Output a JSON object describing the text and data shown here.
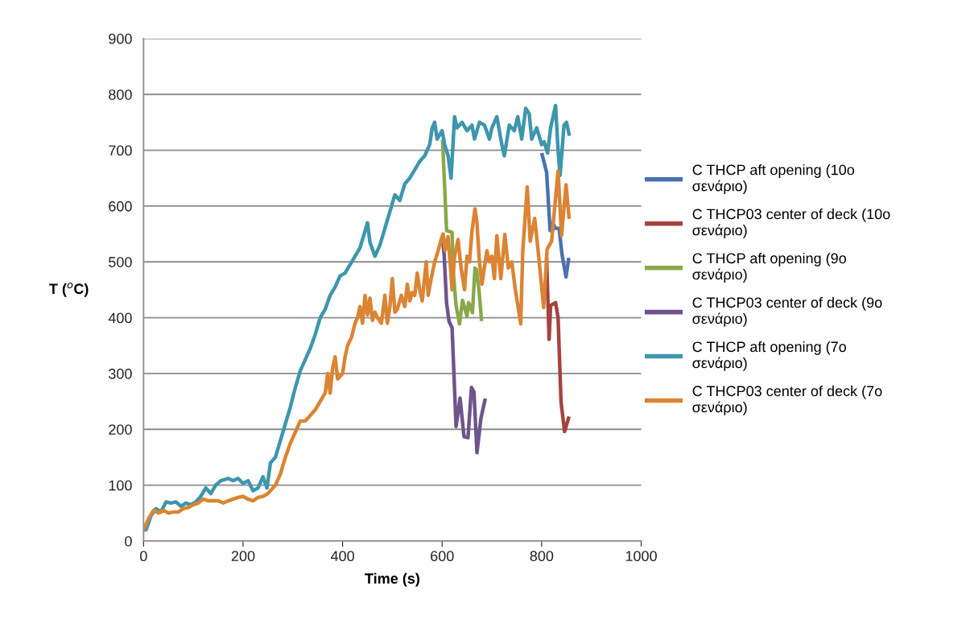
{
  "chart_data": {
    "type": "line",
    "xlabel": "Time (s)",
    "ylabel": "T ($^{o}$C)",
    "xlim": [
      0,
      1000
    ],
    "xticks": [
      0,
      200,
      400,
      600,
      800,
      1000
    ],
    "ylim": [
      0,
      900
    ],
    "yticks": [
      0,
      100,
      200,
      300,
      400,
      500,
      600,
      700,
      800,
      900
    ],
    "grid": "y",
    "legend": "right",
    "marker": "none",
    "line_style": "solid",
    "series": [
      {
        "name": "C THCP aft opening (10o σενάριο)",
        "color": "#4a72b0",
        "x": [
          801,
          810,
          817,
          822,
          828,
          835,
          841,
          849,
          854
        ],
        "values": [
          692,
          660,
          556,
          570,
          560,
          560,
          513,
          473,
          504
        ]
      },
      {
        "name": "C THCP03 center of deck (10o σενάριο)",
        "color": "#a5423f",
        "x": [
          810,
          815,
          818,
          828,
          833,
          839,
          846,
          854
        ],
        "values": [
          505,
          361,
          422,
          427,
          400,
          249,
          196,
          220
        ]
      },
      {
        "name": "C THCP aft opening (9o σενάριο)",
        "color": "#8aa84b",
        "x": [
          601,
          609,
          620,
          622,
          628,
          635,
          641,
          650,
          653,
          661,
          666,
          669,
          674,
          679
        ],
        "values": [
          715,
          556,
          553,
          486,
          422,
          389,
          431,
          403,
          427,
          409,
          489,
          486,
          450,
          397
        ]
      },
      {
        "name": "C THCP03 center of deck (9o σενάριο)",
        "color": "#6e548d",
        "x": [
          601,
          604,
          609,
          614,
          620,
          628,
          636,
          644,
          652,
          659,
          664,
          670,
          678,
          686
        ],
        "values": [
          540,
          513,
          426,
          393,
          382,
          205,
          256,
          187,
          185,
          275,
          267,
          158,
          220,
          252
        ]
      },
      {
        "name": "C THCP aft opening (7o σενάριο)",
        "color": "#3d96ae",
        "x": [
          0,
          5,
          15,
          25,
          35,
          45,
          55,
          65,
          75,
          85,
          95,
          105,
          115,
          125,
          135,
          145,
          155,
          170,
          180,
          190,
          200,
          210,
          220,
          230,
          240,
          248,
          255,
          265,
          275,
          285,
          295,
          305,
          315,
          325,
          335,
          345,
          355,
          365,
          375,
          385,
          395,
          405,
          415,
          425,
          435,
          445,
          450,
          455,
          465,
          475,
          485,
          495,
          505,
          515,
          525,
          535,
          545,
          555,
          565,
          575,
          580,
          585,
          590,
          600,
          605,
          612,
          618,
          625,
          630,
          640,
          650,
          660,
          665,
          675,
          685,
          695,
          700,
          710,
          720,
          725,
          735,
          745,
          752,
          760,
          768,
          775,
          780,
          790,
          800,
          805,
          812,
          818,
          828,
          833,
          837,
          845,
          850,
          855
        ],
        "values": [
          20,
          20,
          45,
          58,
          52,
          70,
          68,
          70,
          62,
          68,
          65,
          70,
          80,
          95,
          85,
          100,
          108,
          112,
          108,
          112,
          103,
          108,
          90,
          95,
          115,
          95,
          140,
          150,
          180,
          210,
          240,
          275,
          305,
          325,
          345,
          370,
          400,
          415,
          440,
          455,
          475,
          480,
          495,
          510,
          525,
          555,
          570,
          535,
          510,
          530,
          560,
          590,
          620,
          610,
          640,
          650,
          665,
          680,
          690,
          710,
          740,
          750,
          720,
          735,
          710,
          690,
          650,
          760,
          740,
          750,
          735,
          745,
          720,
          750,
          745,
          720,
          740,
          760,
          710,
          690,
          745,
          735,
          760,
          720,
          775,
          765,
          720,
          740,
          710,
          715,
          695,
          740,
          780,
          700,
          655,
          745,
          750,
          729
        ]
      },
      {
        "name": "C THCP03 center of deck (7o σενάριο)",
        "color": "#db8433",
        "x": [
          0,
          10,
          20,
          30,
          40,
          50,
          60,
          70,
          80,
          90,
          100,
          110,
          120,
          130,
          140,
          150,
          160,
          170,
          180,
          190,
          200,
          210,
          220,
          230,
          240,
          250,
          260,
          265,
          275,
          285,
          295,
          305,
          315,
          325,
          335,
          345,
          355,
          365,
          370,
          375,
          380,
          385,
          390,
          400,
          405,
          410,
          418,
          425,
          430,
          435,
          440,
          445,
          450,
          455,
          460,
          465,
          470,
          478,
          485,
          490,
          495,
          500,
          505,
          510,
          518,
          525,
          530,
          535,
          540,
          545,
          550,
          555,
          560,
          568,
          572,
          578,
          585,
          592,
          598,
          602,
          606,
          612,
          616,
          620,
          625,
          632,
          638,
          645,
          650,
          655,
          660,
          666,
          670,
          675,
          680,
          685,
          690,
          695,
          700,
          705,
          710,
          718,
          726,
          733,
          740,
          747,
          758,
          762,
          771,
          777,
          786,
          793,
          804,
          811,
          820,
          833,
          840,
          849,
          855
        ],
        "values": [
          20,
          40,
          55,
          50,
          55,
          50,
          52,
          52,
          58,
          60,
          65,
          68,
          75,
          72,
          72,
          72,
          68,
          72,
          75,
          78,
          80,
          75,
          72,
          78,
          80,
          85,
          95,
          100,
          120,
          150,
          175,
          195,
          215,
          215,
          225,
          235,
          250,
          265,
          300,
          265,
          310,
          330,
          290,
          300,
          330,
          350,
          365,
          390,
          400,
          420,
          390,
          440,
          405,
          435,
          395,
          410,
          400,
          390,
          440,
          390,
          420,
          470,
          410,
          415,
          440,
          420,
          460,
          430,
          445,
          440,
          480,
          450,
          430,
          500,
          440,
          470,
          500,
          520,
          540,
          550,
          520,
          545,
          500,
          450,
          510,
          540,
          490,
          450,
          510,
          500,
          555,
          595,
          570,
          500,
          460,
          490,
          520,
          500,
          510,
          470,
          547,
          470,
          549,
          489,
          500,
          451,
          389,
          519,
          634,
          537,
          578,
          519,
          418,
          523,
          537,
          663,
          547,
          638,
          580
        ]
      }
    ]
  }
}
